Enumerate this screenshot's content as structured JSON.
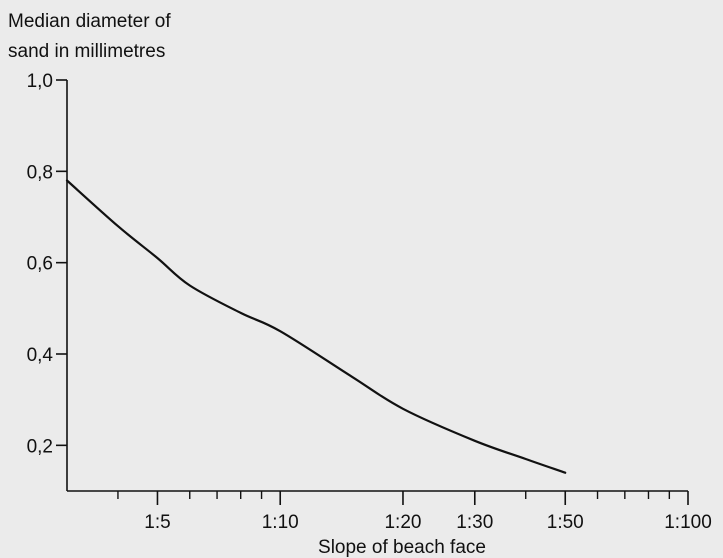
{
  "chart_data": {
    "type": "line",
    "title": "",
    "ylabel_lines": [
      "Median diameter of",
      "sand in millimetres"
    ],
    "xlabel": "Slope of beach face",
    "x_scale": "log",
    "x_range": [
      3,
      100
    ],
    "ylim": [
      0.1,
      1.0
    ],
    "y_ticks": [
      {
        "value": 1.0,
        "label": "1,0"
      },
      {
        "value": 0.8,
        "label": "0,8"
      },
      {
        "value": 0.6,
        "label": "0,6"
      },
      {
        "value": 0.4,
        "label": "0,4"
      },
      {
        "value": 0.2,
        "label": "0,2"
      }
    ],
    "x_ticks_labeled": [
      {
        "value": 5,
        "label": "1:5"
      },
      {
        "value": 10,
        "label": "1:10"
      },
      {
        "value": 20,
        "label": "1:20"
      },
      {
        "value": 30,
        "label": "1:30"
      },
      {
        "value": 50,
        "label": "1:50"
      },
      {
        "value": 100,
        "label": "1:100"
      }
    ],
    "x_ticks_minor": [
      4,
      6,
      7,
      8,
      9,
      40,
      60,
      70,
      80,
      90
    ],
    "series": [
      {
        "x": [
          3,
          4,
          5,
          6,
          8,
          10,
          15,
          20,
          30,
          40,
          50
        ],
        "y": [
          0.78,
          0.68,
          0.61,
          0.55,
          0.49,
          0.45,
          0.35,
          0.28,
          0.21,
          0.17,
          0.14
        ]
      }
    ],
    "grid": false,
    "legend": "none",
    "colors": {
      "line": "#111111",
      "background": "#ebebeb"
    }
  }
}
